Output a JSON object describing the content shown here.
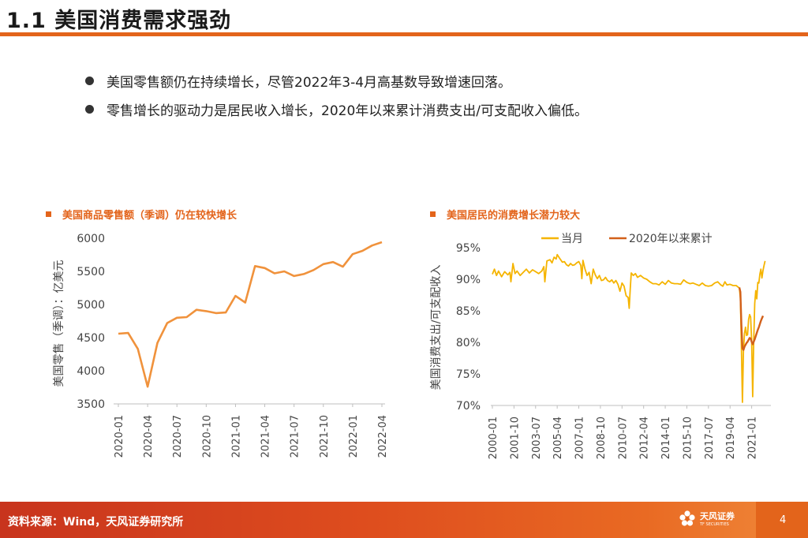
{
  "header": {
    "title": "1.1 美国消费需求强劲"
  },
  "bullets": [
    "美国零售额仍在持续增长，尽管2022年3-4月高基数导致增速回落。",
    "零售增长的驱动力是居民收入增长，2020年以来累计消费支出/可支配收入偏低。"
  ],
  "footer": {
    "source": "资料来源：Wind，天风证券研究所",
    "logo_cn": "天风证券",
    "logo_en": "TF SECURITIES",
    "page": "4"
  },
  "colors": {
    "accent": "#e3641b",
    "line_orange": "#f0923c",
    "line_yellow": "#f5b400",
    "line_dark_orange": "#d2601a"
  },
  "chart_data": [
    {
      "type": "line",
      "title": "美国商品零售额（季调）仍在较快增长",
      "ylabel": "美国零售（季调）：亿美元",
      "xlabel": "",
      "ylim": [
        3500,
        6000
      ],
      "yticks": [
        "3500",
        "4000",
        "4500",
        "5000",
        "5500",
        "6000"
      ],
      "xticks": [
        "2020-01",
        "2020-04",
        "2020-07",
        "2020-10",
        "2021-01",
        "2021-04",
        "2021-07",
        "2021-10",
        "2022-01",
        "2022-04"
      ],
      "series": [
        {
          "name": "美国零售额",
          "values": [
            4560,
            4570,
            4330,
            3760,
            4420,
            4720,
            4800,
            4810,
            4920,
            4900,
            4870,
            4880,
            5130,
            5030,
            5580,
            5550,
            5470,
            5500,
            5430,
            5460,
            5520,
            5610,
            5640,
            5570,
            5760,
            5810,
            5890,
            5940
          ]
        }
      ]
    },
    {
      "type": "line",
      "title": "美国居民的消费增长潜力较大",
      "ylabel": "美国消费支出/可支配收入",
      "xlabel": "",
      "ylim": [
        70,
        95
      ],
      "yticks": [
        "70%",
        "75%",
        "80%",
        "85%",
        "90%",
        "95%"
      ],
      "xticks": [
        "2000-01",
        "2001-10",
        "2003-07",
        "2005-04",
        "2007-01",
        "2008-10",
        "2010-07",
        "2012-04",
        "2014-01",
        "2015-10",
        "2017-07",
        "2019-04",
        "2021-01"
      ],
      "legend": [
        "当月",
        "2020年以来累计"
      ],
      "series": [
        {
          "name": "当月",
          "points": [
            [
              0,
              90.8
            ],
            [
              2,
              91.6
            ],
            [
              4,
              90.6
            ],
            [
              6,
              91.3
            ],
            [
              9,
              90.4
            ],
            [
              12,
              91.2
            ],
            [
              15,
              90.7
            ],
            [
              17,
              91.1
            ],
            [
              18,
              89.6
            ],
            [
              20,
              92.5
            ],
            [
              22,
              90.9
            ],
            [
              24,
              91.3
            ],
            [
              27,
              90.6
            ],
            [
              30,
              91.1
            ],
            [
              33,
              91.6
            ],
            [
              36,
              91.0
            ],
            [
              39,
              91.5
            ],
            [
              42,
              91.2
            ],
            [
              45,
              90.9
            ],
            [
              48,
              91.3
            ],
            [
              50,
              92.0
            ],
            [
              51,
              89.6
            ],
            [
              53,
              92.9
            ],
            [
              56,
              93.1
            ],
            [
              58,
              92.6
            ],
            [
              60,
              93.5
            ],
            [
              62,
              93.2
            ],
            [
              63,
              93.9
            ],
            [
              65,
              93.4
            ],
            [
              68,
              92.7
            ],
            [
              70,
              92.8
            ],
            [
              72,
              92.3
            ],
            [
              74,
              92.1
            ],
            [
              76,
              92.5
            ],
            [
              78,
              92.2
            ],
            [
              80,
              92.3
            ],
            [
              82,
              92.6
            ],
            [
              84,
              92.8
            ],
            [
              86,
              92.2
            ],
            [
              87,
              90.1
            ],
            [
              88,
              93.0
            ],
            [
              90,
              91.6
            ],
            [
              92,
              90.6
            ],
            [
              94,
              91.1
            ],
            [
              96,
              89.3
            ],
            [
              98,
              91.6
            ],
            [
              100,
              90.7
            ],
            [
              102,
              90.1
            ],
            [
              104,
              90.6
            ],
            [
              106,
              89.8
            ],
            [
              108,
              89.9
            ],
            [
              110,
              90.3
            ],
            [
              112,
              89.8
            ],
            [
              114,
              89.6
            ],
            [
              116,
              89.9
            ],
            [
              118,
              89.4
            ],
            [
              120,
              89.8
            ],
            [
              122,
              89.2
            ],
            [
              124,
              88.1
            ],
            [
              126,
              89.4
            ],
            [
              128,
              88.9
            ],
            [
              130,
              87.4
            ],
            [
              132,
              87.1
            ],
            [
              133,
              85.4
            ],
            [
              134,
              88.4
            ],
            [
              135,
              91.0
            ],
            [
              137,
              90.6
            ],
            [
              139,
              90.9
            ],
            [
              141,
              90.3
            ],
            [
              144,
              90.6
            ],
            [
              147,
              90.2
            ],
            [
              150,
              90.0
            ],
            [
              153,
              89.6
            ],
            [
              156,
              89.3
            ],
            [
              159,
              89.3
            ],
            [
              162,
              89.1
            ],
            [
              165,
              89.6
            ],
            [
              168,
              89.2
            ],
            [
              171,
              89.8
            ],
            [
              174,
              89.4
            ],
            [
              177,
              89.3
            ],
            [
              180,
              89.3
            ],
            [
              183,
              89.2
            ],
            [
              186,
              89.9
            ],
            [
              189,
              89.5
            ],
            [
              192,
              89.3
            ],
            [
              195,
              89.4
            ],
            [
              198,
              89.2
            ],
            [
              201,
              89.0
            ],
            [
              204,
              89.4
            ],
            [
              207,
              89.0
            ],
            [
              210,
              88.9
            ],
            [
              213,
              89.0
            ],
            [
              216,
              89.4
            ],
            [
              219,
              89.6
            ],
            [
              222,
              89.1
            ],
            [
              224,
              88.9
            ],
            [
              226,
              89.6
            ],
            [
              228,
              89.1
            ],
            [
              231,
              89.2
            ],
            [
              234,
              89.0
            ],
            [
              237,
              89.0
            ],
            [
              240,
              88.6
            ],
            [
              241,
              87.0
            ],
            [
              242,
              79.3
            ],
            [
              243,
              70.5
            ],
            [
              244,
              78.7
            ],
            [
              245,
              81.4
            ],
            [
              246,
              82.4
            ],
            [
              247,
              81.1
            ],
            [
              248,
              81.2
            ],
            [
              249,
              83.6
            ],
            [
              250,
              84.4
            ],
            [
              251,
              84.0
            ],
            [
              252,
              80.2
            ],
            [
              253,
              71.4
            ],
            [
              254,
              80.1
            ],
            [
              255,
              86.2
            ],
            [
              256,
              88.2
            ],
            [
              257,
              86.9
            ],
            [
              258,
              89.5
            ],
            [
              259,
              89.4
            ],
            [
              260,
              90.8
            ],
            [
              261,
              91.6
            ],
            [
              262,
              90.2
            ],
            [
              263,
              91.4
            ],
            [
              264,
              92.2
            ],
            [
              265,
              92.9
            ]
          ]
        },
        {
          "name": "2020年以来累计",
          "points": [
            [
              240,
              88.7
            ],
            [
              241,
              88.0
            ],
            [
              242,
              82.8
            ],
            [
              243,
              79.1
            ],
            [
              244,
              78.8
            ],
            [
              245,
              79.3
            ],
            [
              246,
              79.6
            ],
            [
              247,
              79.9
            ],
            [
              248,
              80.1
            ],
            [
              249,
              80.4
            ],
            [
              250,
              80.7
            ],
            [
              251,
              80.6
            ],
            [
              252,
              80.1
            ],
            [
              253,
              79.7
            ],
            [
              254,
              80.1
            ],
            [
              255,
              80.5
            ],
            [
              256,
              81.0
            ],
            [
              257,
              81.5
            ],
            [
              258,
              82.0
            ],
            [
              259,
              82.4
            ],
            [
              260,
              82.9
            ],
            [
              261,
              83.4
            ],
            [
              262,
              83.8
            ],
            [
              263,
              84.2
            ]
          ]
        }
      ]
    }
  ]
}
